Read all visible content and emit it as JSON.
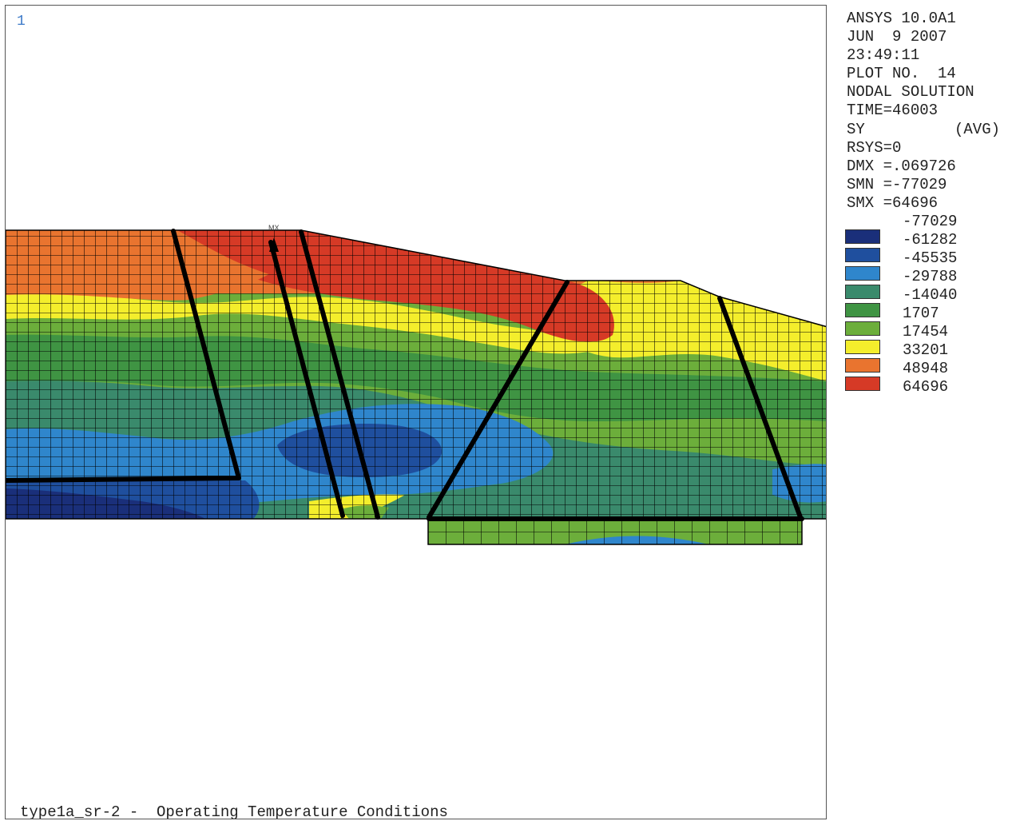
{
  "plot": {
    "window_number": "1",
    "caption": "type1a_sr-2 -  Operating Temperature Conditions",
    "max_marker": "MX"
  },
  "info": {
    "program": "ANSYS 10.0A1",
    "date": "JUN  9 2007",
    "time": "23:49:11",
    "plot_no": "PLOT NO.  14",
    "solution": "NODAL SOLUTION",
    "time_step": "TIME=46003",
    "item": "SY",
    "avg": "(AVG)",
    "rsys": "RSYS=0",
    "dmx": "DMX =.069726",
    "smn": "SMN =-77029",
    "smx": "SMX =64696"
  },
  "legend": {
    "levels": [
      {
        "label": "-77029",
        "color": "#1a2f7a"
      },
      {
        "label": "-61282",
        "color": "#1f4f9e"
      },
      {
        "label": "-45535",
        "color": "#2f86cc"
      },
      {
        "label": "-29788",
        "color": "#3a8a6c"
      },
      {
        "label": "-14040",
        "color": "#3f9443"
      },
      {
        "label": "1707",
        "color": "#6cae3b"
      },
      {
        "label": "17454",
        "color": "#f4ee2c"
      },
      {
        "label": "33201",
        "color": "#e9742f"
      },
      {
        "label": "48948",
        "color": "#d63a26"
      },
      {
        "label": "64696",
        "color": ""
      }
    ]
  }
}
